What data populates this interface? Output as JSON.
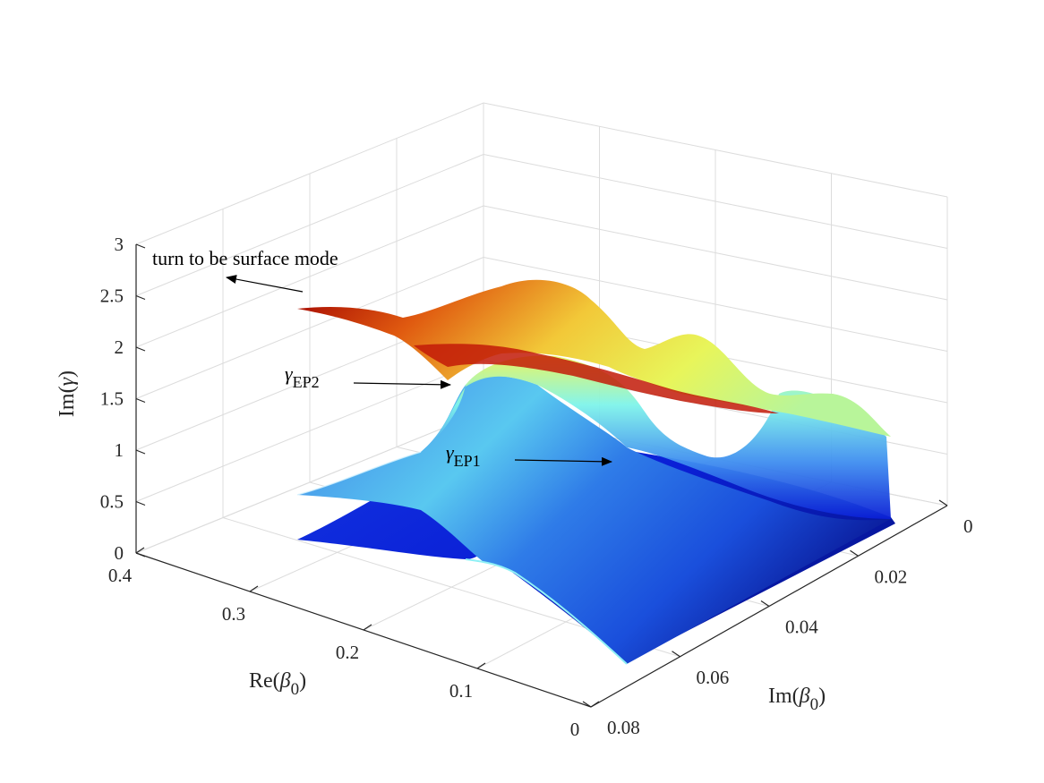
{
  "chart_data": {
    "type": "surface",
    "axes": {
      "z": {
        "label_prefix": "Im(",
        "label_symbol": "γ",
        "label_suffix": ")",
        "range": [
          0,
          3
        ],
        "ticks": [
          "0",
          "0.5",
          "1",
          "1.5",
          "2",
          "2.5",
          "3"
        ]
      },
      "x": {
        "label_prefix": "Re(",
        "label_symbol": "β",
        "label_sub": "0",
        "label_suffix": ")",
        "range": [
          0,
          0.4
        ],
        "ticks": [
          "0.4",
          "0.3",
          "0.2",
          "0.1",
          "0"
        ]
      },
      "y": {
        "label_prefix": "Im(",
        "label_symbol": "β",
        "label_sub": "0",
        "label_suffix": ")",
        "range": [
          0,
          0.08
        ],
        "ticks": [
          "0",
          "0.02",
          "0.04",
          "0.06",
          "0.08"
        ]
      }
    },
    "grid": true,
    "colormap": "jet",
    "annotations": [
      {
        "id": "surface-mode",
        "text": "turn to be surface mode"
      },
      {
        "id": "ep2",
        "symbol": "γ",
        "sub": "EP2"
      },
      {
        "id": "ep1",
        "symbol": "γ",
        "sub": "EP1"
      }
    ]
  },
  "colors": {
    "axis": "#262626",
    "grid": "#dcdcdc",
    "surface_low": "#0a1fd6",
    "surface_mid_low": "#3f8ef0",
    "surface_mid": "#7ff4ea",
    "surface_mid_high": "#e8f55a",
    "surface_high": "#f2a13a",
    "surface_peak": "#b00000"
  }
}
